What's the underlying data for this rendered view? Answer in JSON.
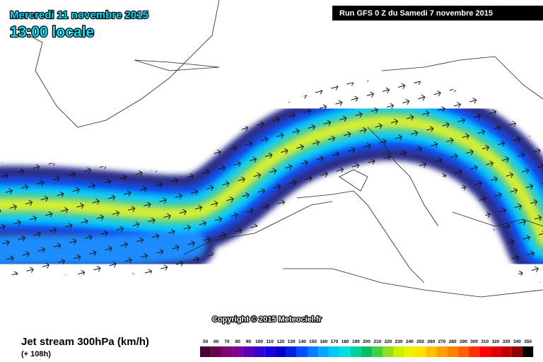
{
  "header": {
    "date": "Mercredi 11 novembre 2015",
    "time": "13:00 locale",
    "run": "Run GFS 0 Z du Samedi 7 novembre 2015"
  },
  "copyright": "Copyright © 2015 Meteociel.fr",
  "footer": {
    "title": "Jet stream 300hPa (km/h)",
    "lead": "(+ 108h)"
  },
  "legend": {
    "labels": [
      50,
      60,
      70,
      80,
      90,
      100,
      110,
      120,
      130,
      140,
      150,
      160,
      170,
      180,
      190,
      200,
      210,
      220,
      230,
      240,
      250,
      260,
      270,
      280,
      290,
      300,
      310,
      320,
      330,
      340,
      350
    ],
    "colors": [
      "#4b0030",
      "#6a0050",
      "#800070",
      "#7a0098",
      "#5a00b8",
      "#3a00d0",
      "#1800e0",
      "#0000c8",
      "#0020e0",
      "#0050ff",
      "#0080ff",
      "#00a8ff",
      "#00c8ff",
      "#00e0e0",
      "#00d0a0",
      "#00c060",
      "#40d040",
      "#90e020",
      "#c8f000",
      "#f0f000",
      "#ffe000",
      "#ffc000",
      "#ffa000",
      "#ff8000",
      "#ff6000",
      "#ff3000",
      "#ff0000",
      "#e00000",
      "#c00000",
      "#900000",
      "#000000"
    ]
  }
}
